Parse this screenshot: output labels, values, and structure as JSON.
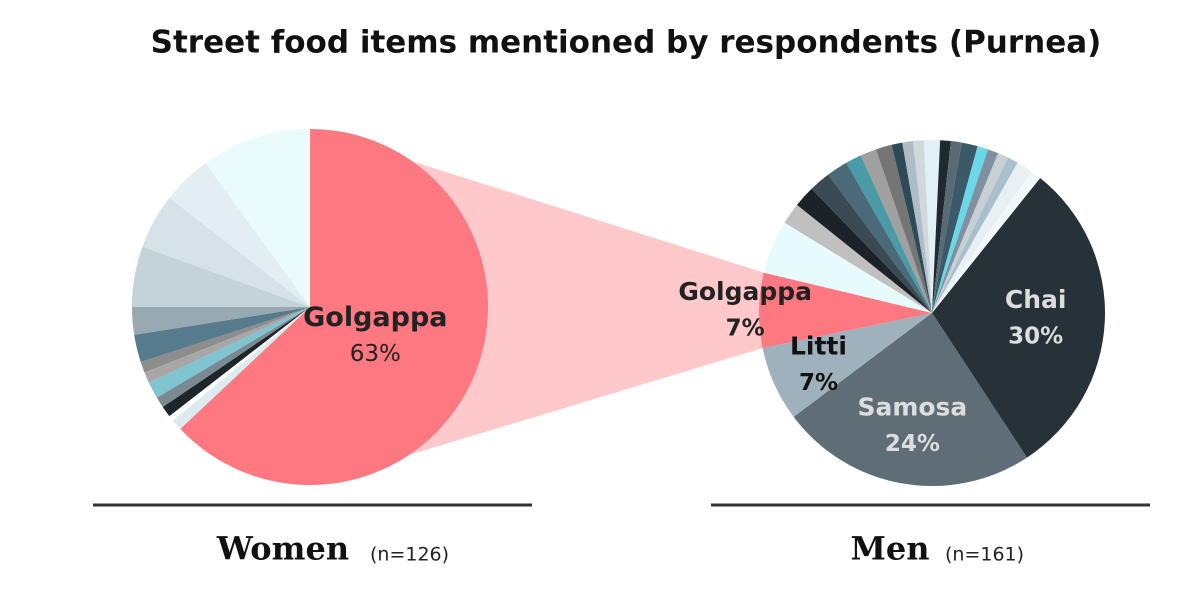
{
  "title": "Street food items mentioned by respondents (Purnea)",
  "chart_data": [
    {
      "type": "pie",
      "label": "Women",
      "note": "(n=126)",
      "categories": [
        "Golgappa",
        null,
        null,
        null,
        null,
        null,
        null,
        null,
        null,
        null,
        null,
        null,
        null,
        null
      ],
      "values": [
        63,
        1,
        0.5,
        1,
        1,
        1.5,
        1,
        1,
        2.5,
        2.5,
        5.5,
        5,
        4.5,
        10
      ],
      "value_labels": [
        "63%",
        null,
        null,
        null,
        null,
        null,
        null,
        null,
        null,
        null,
        null,
        null,
        null,
        null
      ],
      "colors": [
        "#fd7880",
        "#dcebf0",
        "#ffffff",
        "#1d262b",
        "#7b8a92",
        "#7fc4d0",
        "#a7a7a7",
        "#8d8d8d",
        "#567b8c",
        "#98a9b2",
        "#c4d2d9",
        "#d6e2e7",
        "#e2eef1",
        "#eafbfc"
      ]
    },
    {
      "type": "pie",
      "label": "Men",
      "note": "(n=161)",
      "categories": [
        "Chai",
        "Samosa",
        "Litti",
        "Golgappa",
        null,
        null,
        null,
        null,
        null,
        null,
        null,
        null,
        null,
        null,
        null,
        null,
        null,
        null,
        null,
        null,
        null,
        null,
        null,
        null,
        null
      ],
      "values": [
        30,
        24,
        7,
        7,
        5,
        2,
        2,
        2,
        2,
        1.5,
        1.5,
        1.5,
        1,
        1,
        1,
        1.5,
        1,
        1,
        1.5,
        1,
        1,
        1,
        1,
        1.5,
        1
      ],
      "value_labels": [
        "30%",
        "24%",
        "7%",
        "7%",
        null,
        null,
        null,
        null,
        null,
        null,
        null,
        null,
        null,
        null,
        null,
        null,
        null,
        null,
        null,
        null,
        null,
        null,
        null,
        null,
        null
      ],
      "colors": [
        "#263238",
        "#5f6d77",
        "#9fb1bc",
        "#fd7880",
        "#e8fbfc",
        "#c0c0c0",
        "#1b2328",
        "#3a4a52",
        "#4a6a7a",
        "#4a9aa8",
        "#a0a0a0",
        "#757575",
        "#2c4a58",
        "#b0bcc4",
        "#d0d8dc",
        "#e0f0f4",
        "#1e2a30",
        "#5a6a72",
        "#3a5a6a",
        "#6ad8e8",
        "#8090a0",
        "#c8d0d4",
        "#a8c0cc",
        "#e8f0f4",
        "#f0f8fa"
      ]
    }
  ]
}
